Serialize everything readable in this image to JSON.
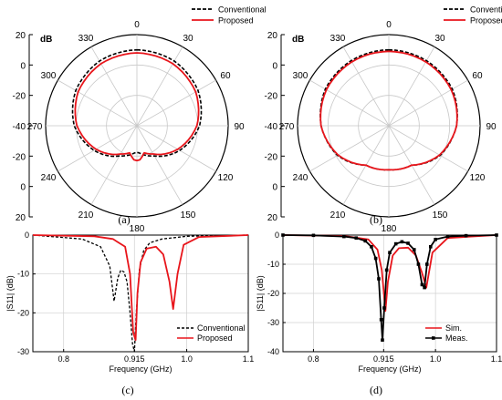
{
  "figure": {
    "panels": [
      {
        "caption": "(a)"
      },
      {
        "caption": "(b)"
      },
      {
        "caption": "(c)"
      },
      {
        "caption": "(d)"
      }
    ]
  },
  "chart_data": [
    {
      "type": "polar",
      "caption": "(a)",
      "unit": "dB",
      "r_range": [
        -40,
        20
      ],
      "radial_tick_labels": [
        "20",
        "0",
        "-20",
        "-40",
        "-20",
        "0",
        "20"
      ],
      "angle_tick_labels": [
        "0",
        "30",
        "60",
        "90",
        "120",
        "150",
        "180",
        "210",
        "240",
        "270",
        "300",
        "330"
      ],
      "legend": {
        "placement": "top-right"
      },
      "series": [
        {
          "name": "Conventional",
          "style": "dashed",
          "color": "#000000",
          "angles": [
            0,
            30,
            60,
            90,
            120,
            150,
            165,
            175,
            180
          ],
          "values": [
            10,
            9.2,
            6.4,
            1.2,
            -7.5,
            -17,
            -20,
            -22,
            -22.5
          ]
        },
        {
          "name": "Proposed",
          "style": "solid",
          "color": "#e8151b",
          "angles": [
            0,
            30,
            60,
            90,
            120,
            150,
            165,
            175,
            180
          ],
          "values": [
            8,
            7.2,
            4.6,
            -0.6,
            -9,
            -18.5,
            -21.5,
            -17.5,
            -17
          ]
        }
      ]
    },
    {
      "type": "polar",
      "caption": "(b)",
      "unit": "dB",
      "r_range": [
        -40,
        20
      ],
      "radial_tick_labels": [
        "20",
        "0",
        "-20",
        "-40",
        "-20",
        "0",
        "20"
      ],
      "angle_tick_labels": [
        "0",
        "30",
        "60",
        "90",
        "120",
        "150",
        "180",
        "210",
        "240",
        "270",
        "300",
        "330"
      ],
      "legend": {
        "placement": "top-right"
      },
      "series": [
        {
          "name": "Conventional",
          "style": "dashed",
          "color": "#000000",
          "angles": [
            0,
            30,
            60,
            90,
            120,
            150,
            180
          ],
          "values": [
            10,
            9.5,
            8.2,
            4.5,
            -1,
            -10,
            -11
          ]
        },
        {
          "name": "Proposed",
          "style": "solid",
          "color": "#e8151b",
          "angles": [
            0,
            30,
            60,
            90,
            120,
            150,
            180
          ],
          "values": [
            9,
            8.6,
            7.4,
            4.6,
            -1.5,
            -10,
            -11
          ]
        }
      ]
    },
    {
      "type": "line",
      "caption": "(c)",
      "xlabel": "Frequency (GHz)",
      "ylabel": "|S11| (dB)",
      "xlim": [
        0.75,
        1.1
      ],
      "ylim": [
        -30,
        0
      ],
      "xticks": [
        "0.8",
        "0.915",
        "1.0",
        "1.1"
      ],
      "xtick_values": [
        0.8,
        0.915,
        1.0,
        1.1
      ],
      "yticks": [
        "0",
        "-10",
        "-20",
        "-30"
      ],
      "ytick_values": [
        0,
        -10,
        -20,
        -30
      ],
      "grid": true,
      "legend": {
        "placement": "bottom-right"
      },
      "series": [
        {
          "name": "Conventional",
          "style": "dashed",
          "color": "#000000",
          "x": [
            0.75,
            0.83,
            0.86,
            0.875,
            0.882,
            0.888,
            0.893,
            0.898,
            0.903,
            0.908,
            0.912,
            0.915,
            0.918,
            0.923,
            0.93,
            0.94,
            0.96,
            1.0,
            1.1
          ],
          "y": [
            0,
            -1,
            -3,
            -8,
            -17,
            -11,
            -9,
            -9.5,
            -12,
            -20,
            -28,
            -30,
            -20,
            -9,
            -4,
            -2,
            -1,
            -0.3,
            0
          ]
        },
        {
          "name": "Proposed",
          "style": "solid",
          "color": "#e8151b",
          "x": [
            0.75,
            0.85,
            0.88,
            0.9,
            0.908,
            0.913,
            0.917,
            0.92,
            0.925,
            0.935,
            0.95,
            0.962,
            0.972,
            0.978,
            0.985,
            0.995,
            1.02,
            1.1
          ],
          "y": [
            0,
            -0.3,
            -1,
            -3,
            -10,
            -25,
            -27,
            -15,
            -7,
            -3.5,
            -3,
            -5,
            -12,
            -19,
            -10,
            -2.5,
            -0.5,
            0
          ]
        }
      ]
    },
    {
      "type": "line",
      "caption": "(d)",
      "xlabel": "Frequency (GHz)",
      "ylabel": "|S11| (dB)",
      "xlim": [
        0.75,
        1.1
      ],
      "ylim": [
        -40,
        0
      ],
      "xticks": [
        "0.8",
        "0.915",
        "1.0",
        "1.1"
      ],
      "xtick_values": [
        0.8,
        0.915,
        1.0,
        1.1
      ],
      "yticks": [
        "0",
        "-10",
        "-20",
        "-30",
        "-40"
      ],
      "ytick_values": [
        0,
        -10,
        -20,
        -30,
        -40
      ],
      "grid": true,
      "legend": {
        "placement": "bottom-right"
      },
      "series": [
        {
          "name": "Sim.",
          "style": "solid",
          "color": "#e8151b",
          "markers": false,
          "x": [
            0.75,
            0.85,
            0.89,
            0.905,
            0.912,
            0.918,
            0.922,
            0.93,
            0.94,
            0.955,
            0.968,
            0.978,
            0.985,
            0.995,
            1.02,
            1.1
          ],
          "y": [
            0,
            -0.3,
            -1.5,
            -5,
            -12,
            -26,
            -16,
            -7,
            -4.5,
            -4.3,
            -7,
            -13,
            -18,
            -6,
            -1,
            0
          ]
        },
        {
          "name": "Meas.",
          "style": "solid",
          "color": "#000000",
          "markers": true,
          "x": [
            0.75,
            0.8,
            0.85,
            0.87,
            0.885,
            0.895,
            0.902,
            0.907,
            0.911,
            0.913,
            0.916,
            0.92,
            0.925,
            0.935,
            0.945,
            0.955,
            0.965,
            0.972,
            0.978,
            0.982,
            0.986,
            0.992,
            1.0,
            1.02,
            1.05,
            1.1
          ],
          "y": [
            0,
            -0.1,
            -0.5,
            -1,
            -2,
            -4,
            -8,
            -15,
            -29,
            -36,
            -25,
            -12,
            -6,
            -3,
            -2.3,
            -2.8,
            -5,
            -10,
            -17,
            -18,
            -10,
            -4,
            -1.5,
            -0.5,
            -0.2,
            0
          ]
        }
      ]
    }
  ]
}
